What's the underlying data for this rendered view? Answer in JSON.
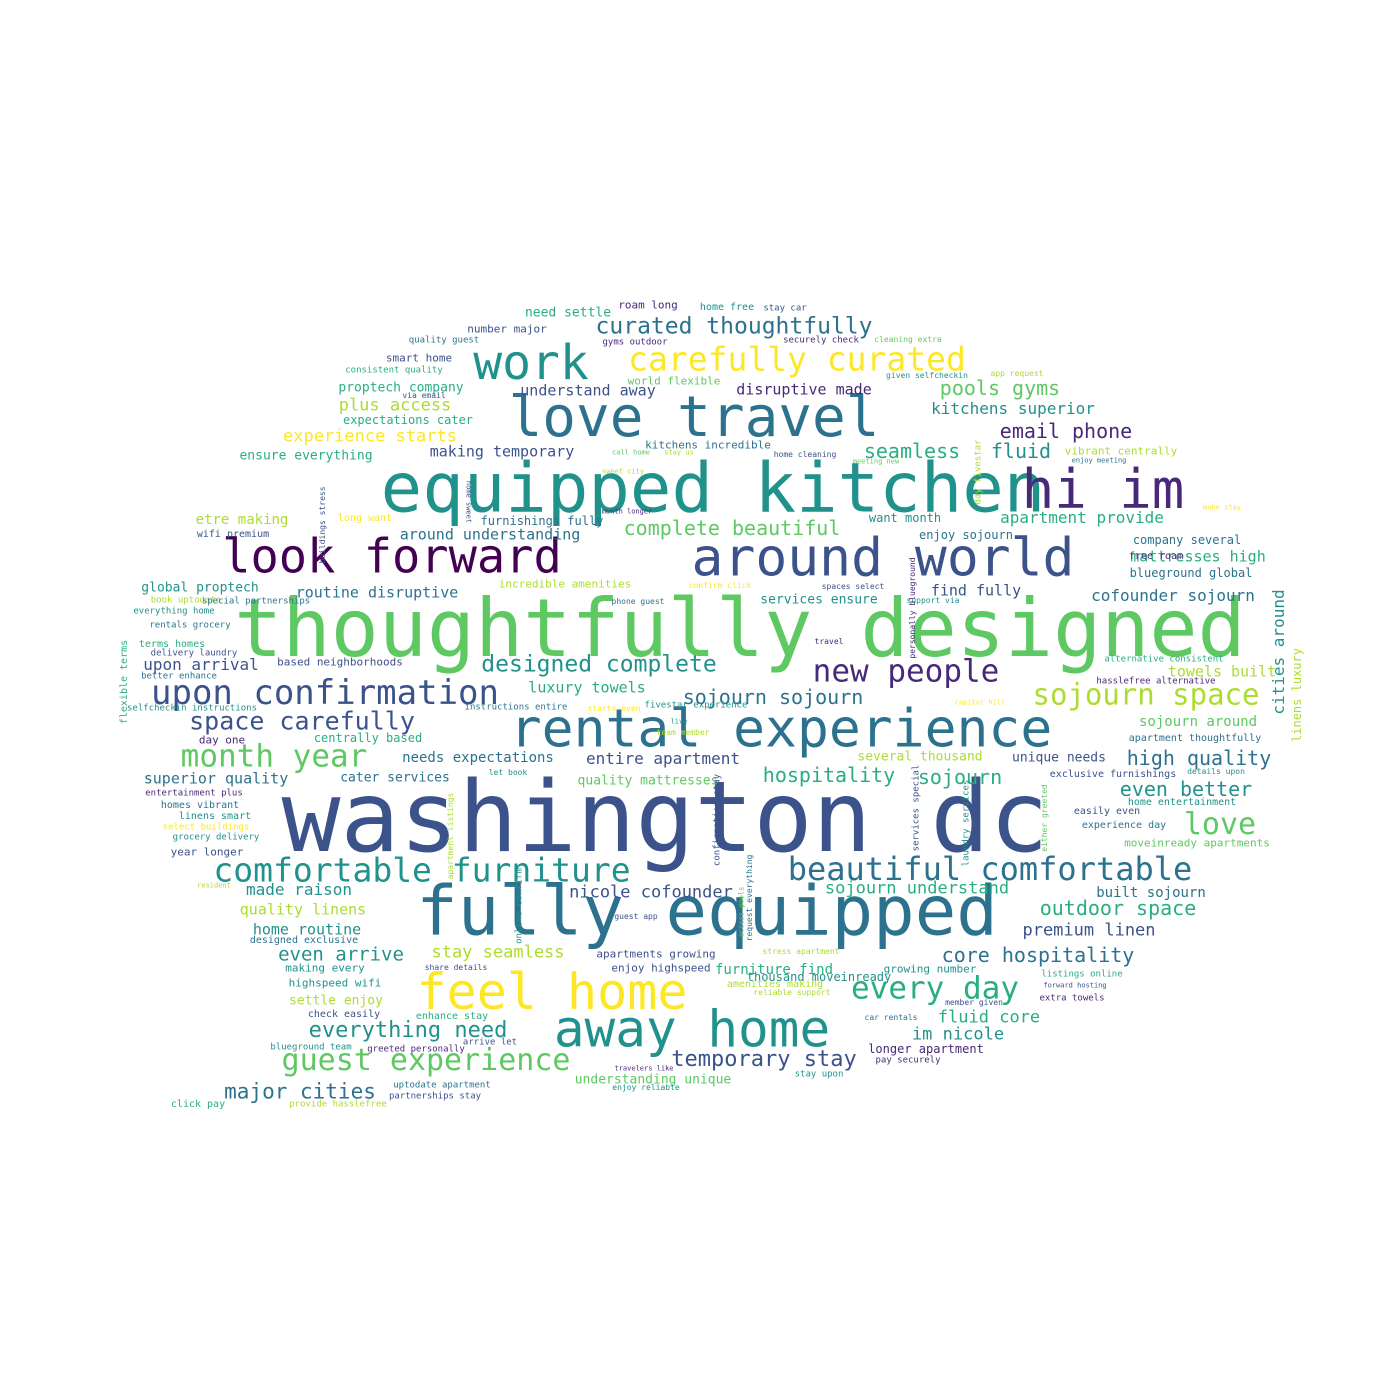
{
  "palette": {
    "dark_purple": "#440154",
    "indigo": "#3b528b",
    "blue": "#2c728e",
    "teal": "#21918c",
    "green_teal": "#28ae80",
    "green": "#5ec962",
    "lime": "#addc30",
    "yellow": "#fde725",
    "purple": "#482878"
  },
  "words": [
    {
      "text": "washington dc",
      "c": "#3b528b"
    },
    {
      "text": "thoughtfully designed",
      "c": "#5ec962"
    },
    {
      "text": "equipped kitchen",
      "c": "#21918c"
    },
    {
      "text": "fully equipped",
      "c": "#2c728e"
    },
    {
      "text": "love travel",
      "c": "#2c728e"
    },
    {
      "text": "rental experience",
      "c": "#2c728e"
    },
    {
      "text": "around world",
      "c": "#3b528b"
    },
    {
      "text": "look forward",
      "c": "#440154"
    },
    {
      "text": "away home",
      "c": "#21918c"
    },
    {
      "text": "feel home",
      "c": "#fde725"
    },
    {
      "text": "hi im",
      "c": "#482878"
    },
    {
      "text": "work",
      "c": "#21918c"
    },
    {
      "text": "carefully curated",
      "c": "#fde725"
    },
    {
      "text": "upon confirmation",
      "c": "#3b528b"
    },
    {
      "text": "comfortable furniture",
      "c": "#21918c"
    },
    {
      "text": "beautiful comfortable",
      "c": "#2c728e"
    },
    {
      "text": "guest experience",
      "c": "#5ec962"
    },
    {
      "text": "new people",
      "c": "#482878"
    },
    {
      "text": "every day",
      "c": "#28ae80"
    },
    {
      "text": "sojourn space",
      "c": "#addc30"
    },
    {
      "text": "month year",
      "c": "#5ec962"
    },
    {
      "text": "space carefully",
      "c": "#3b528b"
    },
    {
      "text": "love",
      "c": "#5ec962"
    },
    {
      "text": "curated thoughtfully",
      "c": "#2c728e"
    },
    {
      "text": "designed complete",
      "c": "#21918c"
    },
    {
      "text": "temporary stay",
      "c": "#3b528b"
    },
    {
      "text": "everything need",
      "c": "#21918c"
    },
    {
      "text": "major cities",
      "c": "#2c728e"
    },
    {
      "text": "outdoor space",
      "c": "#28ae80"
    },
    {
      "text": "core hospitality",
      "c": "#2c728e"
    },
    {
      "text": "hospitality",
      "c": "#28ae80"
    },
    {
      "text": "sojourn",
      "c": "#28ae80"
    },
    {
      "text": "even better",
      "c": "#21918c"
    },
    {
      "text": "high quality",
      "c": "#2c728e"
    },
    {
      "text": "email phone",
      "c": "#482878"
    },
    {
      "text": "pools gyms",
      "c": "#5ec962"
    },
    {
      "text": "seamless",
      "c": "#28ae80"
    },
    {
      "text": "fluid",
      "c": "#21918c"
    },
    {
      "text": "complete beautiful",
      "c": "#5ec962"
    },
    {
      "text": "sojourn sojourn",
      "c": "#2c728e"
    },
    {
      "text": "even arrive",
      "c": "#21918c"
    },
    {
      "text": "stay seamless",
      "c": "#addc30"
    },
    {
      "text": "fluid core",
      "c": "#28ae80"
    },
    {
      "text": "im nicole",
      "c": "#21918c"
    },
    {
      "text": "premium linen",
      "c": "#3b528b"
    },
    {
      "text": "nicole cofounder",
      "c": "#3b528b"
    },
    {
      "text": "sojourn understand",
      "c": "#28ae80"
    },
    {
      "text": "plus access",
      "c": "#addc30"
    },
    {
      "text": "experience starts",
      "c": "#fde725"
    },
    {
      "text": "cofounder sojourn",
      "c": "#2c728e"
    },
    {
      "text": "apartment provide",
      "c": "#28ae80"
    },
    {
      "text": "kitchens superior",
      "c": "#21918c"
    },
    {
      "text": "cities around",
      "c": "#21918c"
    },
    {
      "text": "upon arrival",
      "c": "#3b528b"
    },
    {
      "text": "routine disruptive",
      "c": "#2c728e"
    },
    {
      "text": "entire apartment",
      "c": "#3b528b"
    },
    {
      "text": "luxury towels",
      "c": "#28ae80"
    },
    {
      "text": "superior quality",
      "c": "#2c728e"
    },
    {
      "text": "made raison",
      "c": "#21918c"
    },
    {
      "text": "quality linens",
      "c": "#addc30"
    },
    {
      "text": "home routine",
      "c": "#21918c"
    },
    {
      "text": "understand away",
      "c": "#3b528b"
    },
    {
      "text": "disruptive made",
      "c": "#482878"
    },
    {
      "text": "making temporary",
      "c": "#3b528b"
    },
    {
      "text": "around understanding",
      "c": "#2c728e"
    },
    {
      "text": "mattresses high",
      "c": "#28ae80"
    },
    {
      "text": "find fully",
      "c": "#3b528b"
    },
    {
      "text": "sojourn around",
      "c": "#5ec962"
    },
    {
      "text": "towels built",
      "c": "#addc30"
    },
    {
      "text": "built sojourn",
      "c": "#2c728e"
    },
    {
      "text": "furniture find",
      "c": "#28ae80"
    },
    {
      "text": "needs expectations",
      "c": "#2c728e"
    },
    {
      "text": "unique needs",
      "c": "#3b528b"
    },
    {
      "text": "several thousand",
      "c": "#addc30"
    },
    {
      "text": "quality mattresses",
      "c": "#5ec962"
    },
    {
      "text": "cater services",
      "c": "#2c728e"
    },
    {
      "text": "settle enjoy",
      "c": "#addc30"
    },
    {
      "text": "proptech company",
      "c": "#28ae80"
    },
    {
      "text": "global proptech",
      "c": "#21918c"
    },
    {
      "text": "etre making",
      "c": "#addc30"
    },
    {
      "text": "ensure everything",
      "c": "#28ae80"
    },
    {
      "text": "services ensure",
      "c": "#21918c"
    },
    {
      "text": "company several",
      "c": "#2c728e"
    },
    {
      "text": "blueground global",
      "c": "#2c728e"
    },
    {
      "text": "understanding unique",
      "c": "#5ec962"
    },
    {
      "text": "need settle",
      "c": "#28ae80"
    },
    {
      "text": "linens luxury",
      "c": "#addc30"
    },
    {
      "text": "centrally based",
      "c": "#28ae80"
    },
    {
      "text": "furnishings fully",
      "c": "#2c728e"
    },
    {
      "text": "want month",
      "c": "#21918c"
    },
    {
      "text": "enjoy sojourn",
      "c": "#2c728e"
    },
    {
      "text": "apartments growing",
      "c": "#3b528b"
    },
    {
      "text": "enjoy highspeed",
      "c": "#3b528b"
    },
    {
      "text": "growing number",
      "c": "#21918c"
    },
    {
      "text": "thousand moveinready",
      "c": "#21918c"
    },
    {
      "text": "longer apartment",
      "c": "#482878"
    },
    {
      "text": "day one",
      "c": "#482878"
    },
    {
      "text": "expectations cater",
      "c": "#28ae80"
    },
    {
      "text": "smart home",
      "c": "#3b528b"
    },
    {
      "text": "number major",
      "c": "#3b528b"
    },
    {
      "text": "roam long",
      "c": "#482878"
    },
    {
      "text": "home free",
      "c": "#21918c"
    },
    {
      "text": "stay car",
      "c": "#3b528b"
    },
    {
      "text": "world flexible",
      "c": "#5ec962"
    },
    {
      "text": "kitchens incredible",
      "c": "#2c728e"
    },
    {
      "text": "vibrant centrally",
      "c": "#addc30"
    },
    {
      "text": "based neighborhoods",
      "c": "#3b528b"
    },
    {
      "text": "incredible amenities",
      "c": "#addc30"
    },
    {
      "text": "highspeed wifi",
      "c": "#21918c"
    },
    {
      "text": "making every",
      "c": "#21918c"
    },
    {
      "text": "check easily",
      "c": "#3b528b"
    },
    {
      "text": "enhance stay",
      "c": "#28ae80"
    },
    {
      "text": "amenities making",
      "c": "#addc30"
    },
    {
      "text": "free roam",
      "c": "#482878"
    },
    {
      "text": "apartment thoughtfully",
      "c": "#2c728e"
    },
    {
      "text": "exclusive furnishings",
      "c": "#3b528b"
    },
    {
      "text": "home entertainment",
      "c": "#21918c"
    },
    {
      "text": "moveinready apartments",
      "c": "#5ec962"
    },
    {
      "text": "experience day",
      "c": "#2c728e"
    },
    {
      "text": "easily even",
      "c": "#3b528b"
    },
    {
      "text": "designed exclusive",
      "c": "#2c728e"
    },
    {
      "text": "year longer",
      "c": "#3b528b"
    },
    {
      "text": "linens smart",
      "c": "#21918c"
    },
    {
      "text": "homes vibrant",
      "c": "#2c728e"
    },
    {
      "text": "terms homes",
      "c": "#28ae80"
    },
    {
      "text": "listings online",
      "c": "#28ae80"
    },
    {
      "text": "extra towels",
      "c": "#482878"
    },
    {
      "text": "pay securely",
      "c": "#482878"
    },
    {
      "text": "stay upon",
      "c": "#21918c"
    },
    {
      "text": "uptodate apartment",
      "c": "#2c728e"
    },
    {
      "text": "partnerships stay",
      "c": "#3b528b"
    },
    {
      "text": "click pay",
      "c": "#28ae80"
    },
    {
      "text": "provide hasslefree",
      "c": "#addc30"
    },
    {
      "text": "blueground team",
      "c": "#21918c"
    },
    {
      "text": "greeted personally",
      "c": "#482878"
    },
    {
      "text": "arrive let",
      "c": "#3b528b"
    },
    {
      "text": "quality guest",
      "c": "#2c728e"
    },
    {
      "text": "gyms outdoor",
      "c": "#482878"
    },
    {
      "text": "securely check",
      "c": "#482878"
    },
    {
      "text": "cleaning extra",
      "c": "#5ec962"
    },
    {
      "text": "consistent quality",
      "c": "#28ae80"
    },
    {
      "text": "given selfcheckin",
      "c": "#21918c"
    },
    {
      "text": "app request",
      "c": "#addc30"
    },
    {
      "text": "via email",
      "c": "#3b528b"
    },
    {
      "text": "sweet city",
      "c": "#addc30"
    },
    {
      "text": "call home",
      "c": "#5ec962"
    },
    {
      "text": "stay us",
      "c": "#addc30"
    },
    {
      "text": "home cleaning",
      "c": "#3b528b"
    },
    {
      "text": "meeting new",
      "c": "#5ec962"
    },
    {
      "text": "enjoy meeting",
      "c": "#2c728e"
    },
    {
      "text": "long want",
      "c": "#fde725"
    },
    {
      "text": "month longer",
      "c": "#482878"
    },
    {
      "text": "make stay",
      "c": "#fde725"
    },
    {
      "text": "wifi premium",
      "c": "#3b528b"
    },
    {
      "text": "everything home",
      "c": "#21918c"
    },
    {
      "text": "book uptodate",
      "c": "#addc30"
    },
    {
      "text": "special partnerships",
      "c": "#2c728e"
    },
    {
      "text": "phone guest",
      "c": "#2c728e"
    },
    {
      "text": "confirm click",
      "c": "#fde725"
    },
    {
      "text": "spaces select",
      "c": "#3b528b"
    },
    {
      "text": "support via",
      "c": "#21918c"
    },
    {
      "text": "rentals grocery",
      "c": "#2c728e"
    },
    {
      "text": "delivery laundry",
      "c": "#3b528b"
    },
    {
      "text": "better enhance",
      "c": "#2c728e"
    },
    {
      "text": "travel",
      "c": "#482878"
    },
    {
      "text": "alternative consistent",
      "c": "#28ae80"
    },
    {
      "text": "hasslefree alternative",
      "c": "#482878"
    },
    {
      "text": "capitol hill",
      "c": "#fde725"
    },
    {
      "text": "starts even",
      "c": "#fde725"
    },
    {
      "text": "live",
      "c": "#21918c"
    },
    {
      "text": "team member",
      "c": "#addc30"
    },
    {
      "text": "selfcheckin instructions",
      "c": "#21918c"
    },
    {
      "text": "instructions entire",
      "c": "#2c728e"
    },
    {
      "text": "fivestar experience",
      "c": "#21918c"
    },
    {
      "text": "let book",
      "c": "#21918c"
    },
    {
      "text": "details upon",
      "c": "#21918c"
    },
    {
      "text": "entertainment plus",
      "c": "#482878"
    },
    {
      "text": "select buildings",
      "c": "#fde725"
    },
    {
      "text": "grocery delivery",
      "c": "#21918c"
    },
    {
      "text": "resident",
      "c": "#addc30"
    },
    {
      "text": "guest app",
      "c": "#3b528b"
    },
    {
      "text": "stress apartment",
      "c": "#addc30"
    },
    {
      "text": "share details",
      "c": "#3b528b"
    },
    {
      "text": "reliable support",
      "c": "#addc30"
    },
    {
      "text": "member given",
      "c": "#3b528b"
    },
    {
      "text": "car rentals",
      "c": "#2c728e"
    },
    {
      "text": "forward hosting",
      "c": "#3b528b"
    },
    {
      "text": "travelers like",
      "c": "#482878"
    },
    {
      "text": "enjoy reliable",
      "c": "#21918c"
    },
    {
      "text": "flexible terms",
      "c": "#28ae80"
    },
    {
      "text": "buildings stress",
      "c": "#3b528b"
    },
    {
      "text": "home sweet",
      "c": "#3b528b"
    },
    {
      "text": "personally blueground",
      "c": "#482878"
    },
    {
      "text": "day fivestar",
      "c": "#addc30"
    },
    {
      "text": "services special",
      "c": "#3b528b"
    },
    {
      "text": "laundry services",
      "c": "#21918c"
    },
    {
      "text": "either greeted",
      "c": "#5ec962"
    },
    {
      "text": "confirmation stay",
      "c": "#3b528b"
    },
    {
      "text": "request everything",
      "c": "#2c728e"
    },
    {
      "text": "access pools",
      "c": "#5ec962"
    },
    {
      "text": "online confirm",
      "c": "#21918c"
    },
    {
      "text": "apartment listings",
      "c": "#addc30"
    }
  ]
}
